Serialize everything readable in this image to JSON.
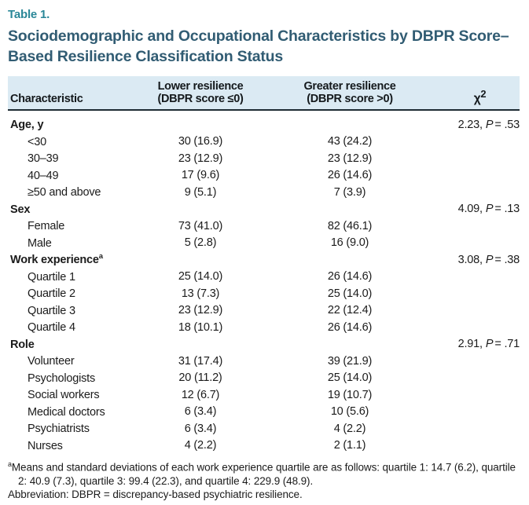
{
  "page": {
    "table_label": "Table 1.",
    "title": "Sociodemographic and Occupational Characteristics by DBPR Score–Based Resilience Classification Status"
  },
  "colors": {
    "accent_teal": "#2a8798",
    "title_blue": "#315c73",
    "header_band_blue": "#dbeaf3",
    "header_rule_dark": "#1e2b33",
    "bottom_rule_slate": "#7d97a9"
  },
  "table": {
    "columns": {
      "characteristic": "Characteristic",
      "lower_line1": "Lower resilience",
      "lower_line2": "(DBPR score ≤0)",
      "greater_line1": "Greater resilience",
      "greater_line2": "(DBPR score >0)",
      "chi_symbol": "χ",
      "chi_sup": "2"
    },
    "rows": [
      {
        "label": "Age, y",
        "bold": true,
        "chi": "2.23,",
        "p": "P",
        "pv": "= .53"
      },
      {
        "label": "<30",
        "indent": true,
        "lower": "30 (16.9)",
        "greater": "43 (24.2)"
      },
      {
        "label": "30–39",
        "indent": true,
        "lower": "23 (12.9)",
        "greater": "23 (12.9)"
      },
      {
        "label": "40–49",
        "indent": true,
        "lower": "17 (9.6)",
        "greater": "26 (14.6)"
      },
      {
        "label": "≥50 and above",
        "indent": true,
        "lower": "9 (5.1)",
        "greater": "7 (3.9)"
      },
      {
        "label": "Sex",
        "bold": true,
        "chi": "4.09,",
        "p": "P",
        "pv": "= .13"
      },
      {
        "label": "Female",
        "indent": true,
        "lower": "73 (41.0)",
        "greater": "82 (46.1)"
      },
      {
        "label": "Male",
        "indent": true,
        "lower": "5 (2.8)",
        "greater": "16 (9.0)"
      },
      {
        "label": "Work experience",
        "sup": "a",
        "bold": true,
        "chi": "3.08,",
        "p": "P",
        "pv": "= .38"
      },
      {
        "label": "Quartile 1",
        "indent": true,
        "lower": "25 (14.0)",
        "greater": "26 (14.6)"
      },
      {
        "label": "Quartile 2",
        "indent": true,
        "lower": "13 (7.3)",
        "greater": "25 (14.0)"
      },
      {
        "label": "Quartile 3",
        "indent": true,
        "lower": "23 (12.9)",
        "greater": "22 (12.4)"
      },
      {
        "label": "Quartile 4",
        "indent": true,
        "lower": "18 (10.1)",
        "greater": "26 (14.6)"
      },
      {
        "label": "Role",
        "bold": true,
        "chi": "2.91,",
        "p": "P",
        "pv": "= .71"
      },
      {
        "label": "Volunteer",
        "indent": true,
        "lower": "31 (17.4)",
        "greater": "39 (21.9)"
      },
      {
        "label": "Psychologists",
        "indent": true,
        "lower": "20 (11.2)",
        "greater": "25 (14.0)"
      },
      {
        "label": "Social workers",
        "indent": true,
        "lower": "12 (6.7)",
        "greater": "19 (10.7)"
      },
      {
        "label": "Medical doctors",
        "indent": true,
        "lower": "6 (3.4)",
        "greater": "10 (5.6)"
      },
      {
        "label": "Psychiatrists",
        "indent": true,
        "lower": "6 (3.4)",
        "greater": "4 (2.2)"
      },
      {
        "label": "Nurses",
        "indent": true,
        "lower": "4 (2.2)",
        "greater": "2 (1.1)"
      }
    ]
  },
  "footnotes": {
    "work_experience_marker": "a",
    "work_experience_text": "Means and standard deviations of each work experience quartile are as follows: quartile 1: 14.7 (6.2), quartile 2: 40.9 (7.3), quartile 3: 99.4 (22.3), and quartile 4: 229.9 (48.9).",
    "abbreviation": "Abbreviation: DBPR = discrepancy-based psychiatric resilience."
  }
}
